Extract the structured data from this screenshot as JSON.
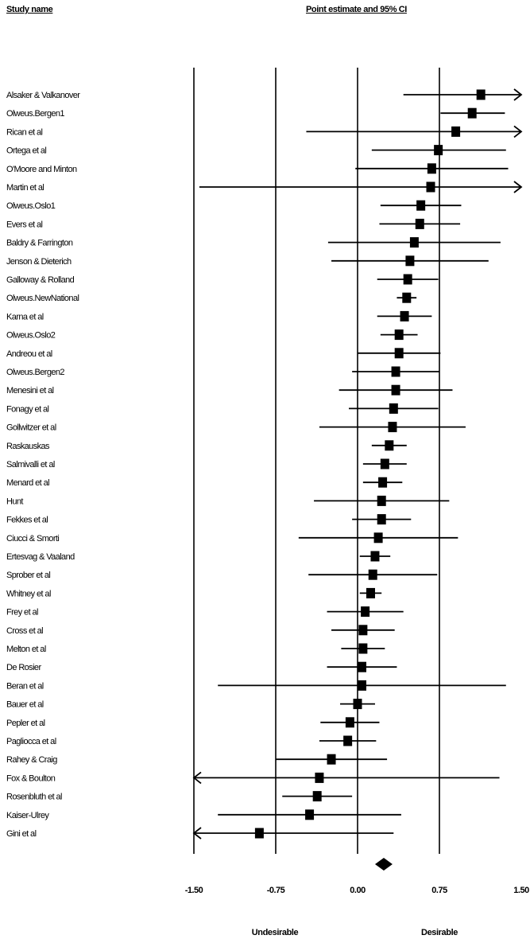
{
  "header": {
    "study_col": "Study name",
    "estimate_col": "Point estimate and 95% CI"
  },
  "chart_data": {
    "type": "forest",
    "xlim": [
      -1.5,
      1.5
    ],
    "ticks": [
      -1.5,
      -0.75,
      0.0,
      0.75,
      1.5
    ],
    "tick_labels": [
      "-1.50",
      "-0.75",
      "0.00",
      "0.75",
      "1.50"
    ],
    "gridlines": [
      -1.5,
      -0.75,
      0.0,
      0.75
    ],
    "left_label": "Undesirable",
    "right_label": "Desirable",
    "studies": [
      {
        "name": "Alsaker & Valkanover",
        "est": 1.13,
        "lo": 0.42,
        "hi": 1.5,
        "arrow_hi": true
      },
      {
        "name": "Olweus.Bergen1",
        "est": 1.05,
        "lo": 0.76,
        "hi": 1.35
      },
      {
        "name": "Rican et al",
        "est": 0.9,
        "lo": -0.47,
        "hi": 1.5,
        "arrow_hi": true
      },
      {
        "name": "Ortega et al",
        "est": 0.74,
        "lo": 0.13,
        "hi": 1.36
      },
      {
        "name": "O'Moore and Minton",
        "est": 0.68,
        "lo": -0.02,
        "hi": 1.38
      },
      {
        "name": "Martin et al",
        "est": 0.67,
        "lo": -1.45,
        "hi": 1.5,
        "arrow_hi": true
      },
      {
        "name": "Olweus.Oslo1",
        "est": 0.58,
        "lo": 0.21,
        "hi": 0.95
      },
      {
        "name": "Evers et al",
        "est": 0.57,
        "lo": 0.2,
        "hi": 0.94
      },
      {
        "name": "Baldry & Farrington",
        "est": 0.52,
        "lo": -0.27,
        "hi": 1.31
      },
      {
        "name": "Jenson & Dieterich",
        "est": 0.48,
        "lo": -0.24,
        "hi": 1.2
      },
      {
        "name": "Galloway & Rolland",
        "est": 0.46,
        "lo": 0.18,
        "hi": 0.74
      },
      {
        "name": "Olweus.NewNational",
        "est": 0.45,
        "lo": 0.36,
        "hi": 0.54
      },
      {
        "name": "Karna et al",
        "est": 0.43,
        "lo": 0.18,
        "hi": 0.68
      },
      {
        "name": "Olweus.Oslo2",
        "est": 0.38,
        "lo": 0.21,
        "hi": 0.55
      },
      {
        "name": "Andreou et al",
        "est": 0.38,
        "lo": 0.0,
        "hi": 0.76
      },
      {
        "name": "Olweus.Bergen2",
        "est": 0.35,
        "lo": -0.05,
        "hi": 0.75
      },
      {
        "name": "Menesini et al",
        "est": 0.35,
        "lo": -0.17,
        "hi": 0.87
      },
      {
        "name": "Fonagy et al",
        "est": 0.33,
        "lo": -0.08,
        "hi": 0.74
      },
      {
        "name": "Gollwitzer et al",
        "est": 0.32,
        "lo": -0.35,
        "hi": 0.99
      },
      {
        "name": "Raskauskas",
        "est": 0.29,
        "lo": 0.13,
        "hi": 0.45
      },
      {
        "name": "Salmivalli et al",
        "est": 0.25,
        "lo": 0.05,
        "hi": 0.45
      },
      {
        "name": "Menard et al",
        "est": 0.23,
        "lo": 0.05,
        "hi": 0.41
      },
      {
        "name": "Hunt",
        "est": 0.22,
        "lo": -0.4,
        "hi": 0.84
      },
      {
        "name": "Fekkes et al",
        "est": 0.22,
        "lo": -0.05,
        "hi": 0.49
      },
      {
        "name": "Ciucci & Smorti",
        "est": 0.19,
        "lo": -0.54,
        "hi": 0.92
      },
      {
        "name": "Ertesvag & Vaaland",
        "est": 0.16,
        "lo": 0.02,
        "hi": 0.3
      },
      {
        "name": "Sprober et al",
        "est": 0.14,
        "lo": -0.45,
        "hi": 0.73
      },
      {
        "name": "Whitney et al",
        "est": 0.12,
        "lo": 0.02,
        "hi": 0.22
      },
      {
        "name": "Frey et al",
        "est": 0.07,
        "lo": -0.28,
        "hi": 0.42
      },
      {
        "name": "Cross et al",
        "est": 0.05,
        "lo": -0.24,
        "hi": 0.34
      },
      {
        "name": "Melton et al",
        "est": 0.05,
        "lo": -0.15,
        "hi": 0.25
      },
      {
        "name": "De Rosier",
        "est": 0.04,
        "lo": -0.28,
        "hi": 0.36
      },
      {
        "name": "Beran et al",
        "est": 0.04,
        "lo": -1.28,
        "hi": 1.36
      },
      {
        "name": "Bauer et al",
        "est": 0.0,
        "lo": -0.16,
        "hi": 0.16
      },
      {
        "name": "Pepler et al",
        "est": -0.07,
        "lo": -0.34,
        "hi": 0.2
      },
      {
        "name": "Pagliocca et al",
        "est": -0.09,
        "lo": -0.35,
        "hi": 0.17
      },
      {
        "name": "Rahey & Craig",
        "est": -0.24,
        "lo": -0.75,
        "hi": 0.27
      },
      {
        "name": "Fox & Boulton",
        "est": -0.35,
        "lo": -1.5,
        "hi": 1.3,
        "arrow_lo": true
      },
      {
        "name": "Rosenbluth et al",
        "est": -0.37,
        "lo": -0.69,
        "hi": -0.05
      },
      {
        "name": "Kaiser-Ulrey",
        "est": -0.44,
        "lo": -1.28,
        "hi": 0.4
      },
      {
        "name": "Gini et al",
        "est": -0.9,
        "lo": -1.5,
        "hi": 0.33,
        "arrow_lo": true
      }
    ],
    "summary": {
      "est": 0.24,
      "lo": 0.16,
      "hi": 0.32
    }
  }
}
